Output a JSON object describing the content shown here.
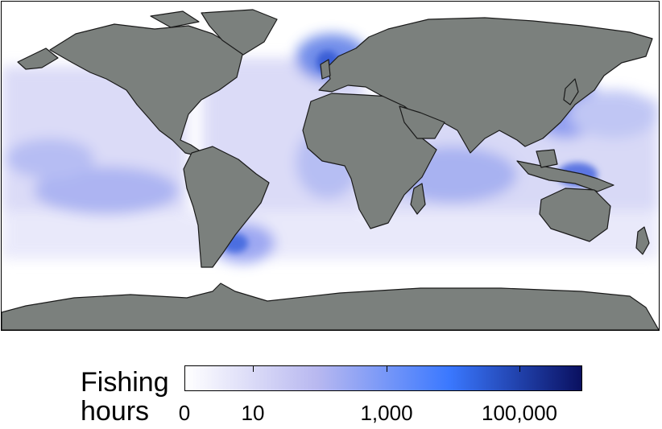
{
  "legend": {
    "title_line1": "Fishing",
    "title_line2": "hours",
    "ticks": [
      "0",
      "10",
      "1,000",
      "100,000"
    ],
    "color_ramp": [
      "#ffffff",
      "#b8b8f0",
      "#3a78ff",
      "#0a1060"
    ]
  },
  "colors": {
    "land": "#7b807d",
    "ocean": "#ffffff",
    "fishing_low": "#d8d8f6",
    "fishing_mid": "#8f9cf0",
    "fishing_high": "#3a6be0"
  }
}
